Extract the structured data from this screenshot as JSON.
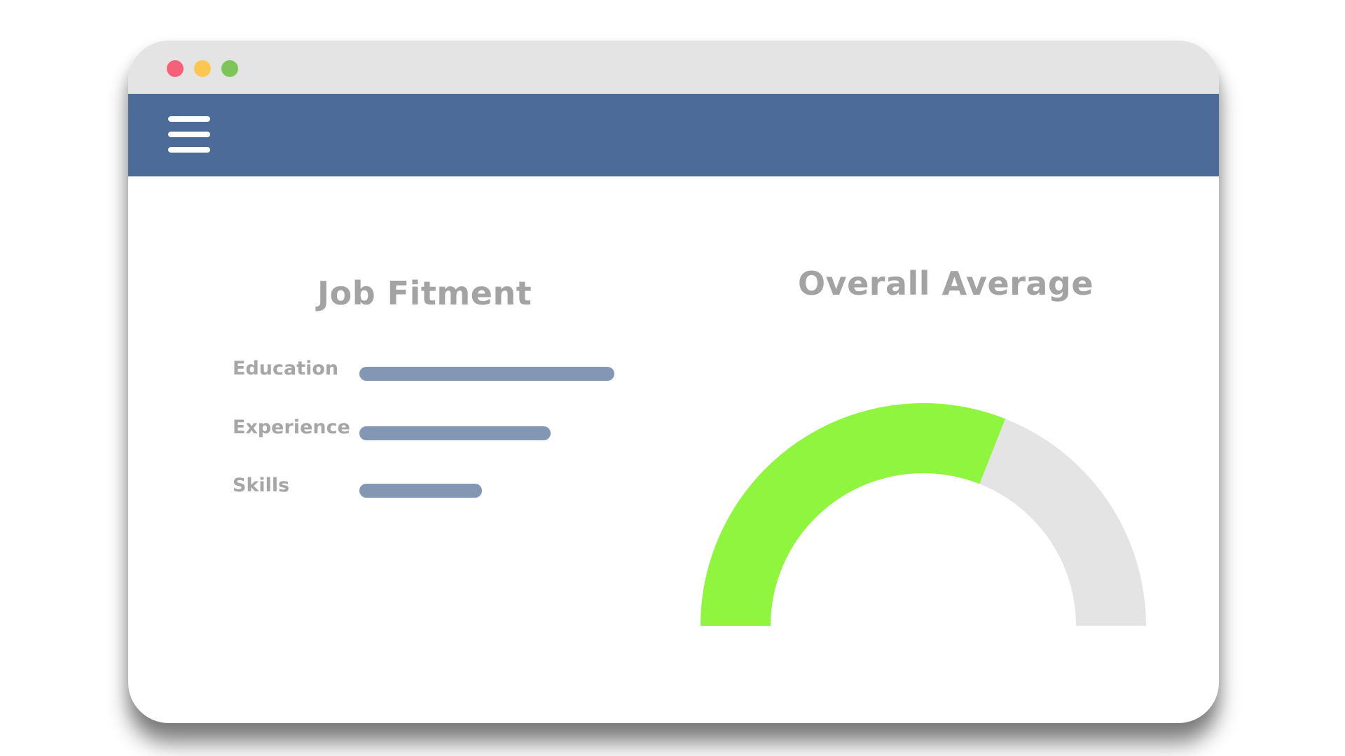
{
  "window": {
    "traffic_lights": [
      {
        "name": "close",
        "color": "#f5617a"
      },
      {
        "name": "minimize",
        "color": "#fdc651"
      },
      {
        "name": "maximize",
        "color": "#7fc45b"
      }
    ]
  },
  "navbar": {
    "background": "#4d6b98",
    "menu_icon": "hamburger-menu-icon"
  },
  "job_fitment": {
    "title": "Job Fitment",
    "bar_color": "#8396b3",
    "metrics": [
      {
        "label": "Education",
        "fraction": 1.0
      },
      {
        "label": "Experience",
        "fraction": 0.75
      },
      {
        "label": "Skills",
        "fraction": 0.48
      }
    ]
  },
  "overall_average": {
    "title": "Overall Average",
    "fraction": 0.62,
    "fill_color": "#8ff53f",
    "track_color": "#e4e4e4"
  }
}
